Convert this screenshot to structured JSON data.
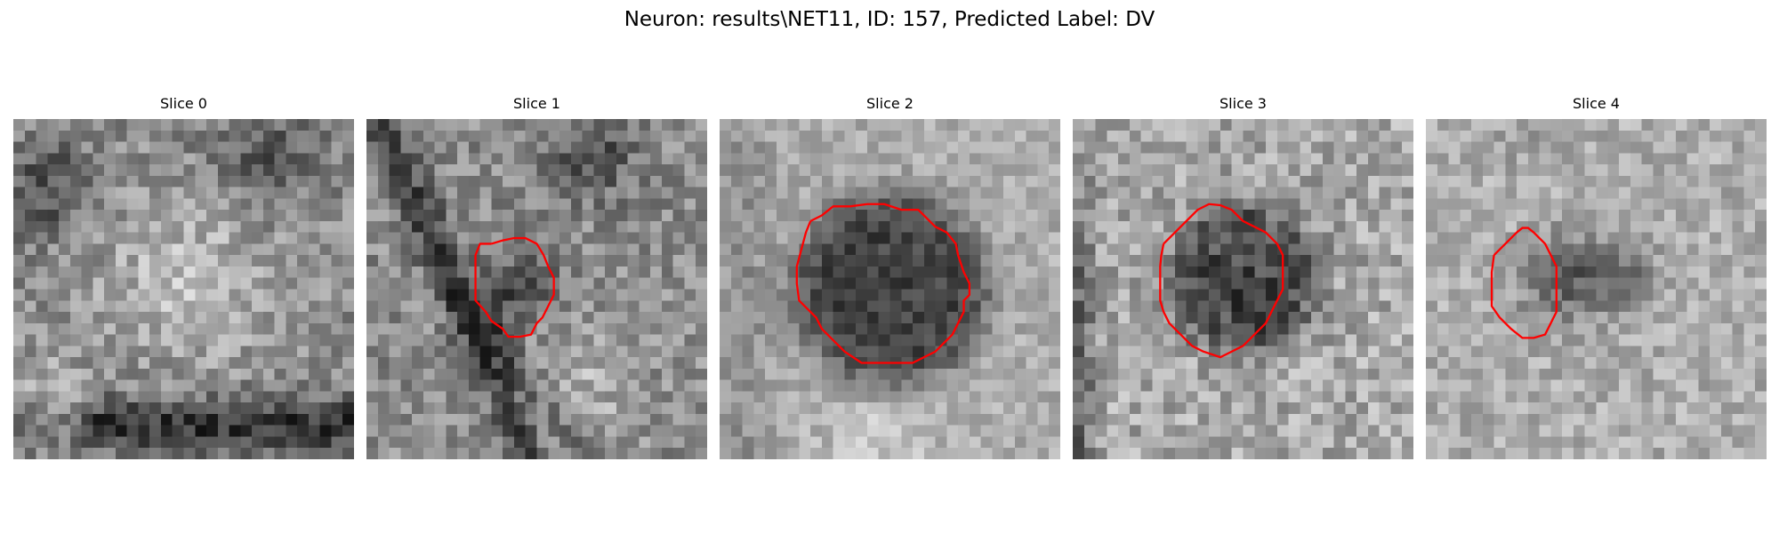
{
  "figure": {
    "title": "Neuron: results\\NET11, ID: 157, Predicted Label: DV"
  },
  "slices": [
    {
      "title": "Slice 0",
      "contour": false
    },
    {
      "title": "Slice 1",
      "contour": true
    },
    {
      "title": "Slice 2",
      "contour": true
    },
    {
      "title": "Slice 3",
      "contour": true
    },
    {
      "title": "Slice 4",
      "contour": true
    }
  ],
  "colors": {
    "contour": "#ff0000",
    "background": "#ffffff"
  }
}
